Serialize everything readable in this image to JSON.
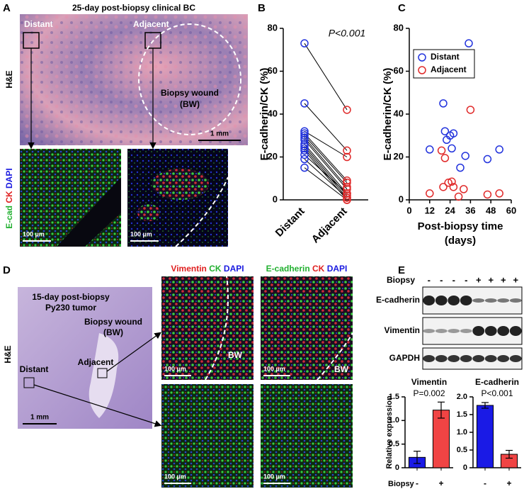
{
  "panel_labels": [
    "A",
    "B",
    "C",
    "D",
    "E"
  ],
  "panel_a": {
    "title": "25-day post-biopsy clinical BC",
    "stain": "H&E",
    "distant": "Distant",
    "adjacent": "Adjacent",
    "wound": [
      "Biopsy wound",
      "(BW)"
    ],
    "scale_he": "1 mm",
    "if_stain": [
      "E-cad",
      "CK",
      "DAPI"
    ],
    "scale_if": [
      "100 µm",
      "100 µm"
    ]
  },
  "panel_d": {
    "title": [
      "15-day post-biopsy",
      "Py230 tumor"
    ],
    "stain": "H&E",
    "wound": [
      "Biopsy wound",
      "(BW)"
    ],
    "adjacent": "Adjacent",
    "distant": "Distant",
    "scale_he": "1 mm",
    "if_stain_1": [
      "Vimentin",
      "CK",
      "DAPI"
    ],
    "if_stain_2": [
      "E-cadherin",
      "CK",
      "DAPI"
    ],
    "bw": [
      "BW",
      "BW"
    ],
    "scale_if": [
      "100 µm",
      "100 µm",
      "100 µm",
      "100 µm"
    ]
  },
  "panel_e_blot": {
    "row_label": "Biopsy",
    "lanes": [
      "-",
      "-",
      "-",
      "-",
      "+",
      "+",
      "+",
      "+"
    ],
    "proteins": [
      "E-cadherin",
      "Vimentin",
      "GAPDH"
    ]
  },
  "chart_data": [
    {
      "type": "paired",
      "ylabel": "E-cadherin/CK (%)",
      "annotation": "P<0.001",
      "ylim": [
        0,
        80
      ],
      "yticks": [
        0,
        20,
        40,
        60,
        80
      ],
      "series": [
        {
          "name": "Distant",
          "color": "#2233dd",
          "values": [
            73,
            45,
            32,
            31,
            30,
            29,
            28,
            26,
            25,
            24,
            23,
            21,
            19,
            15
          ]
        },
        {
          "name": "Adjacent",
          "color": "#e02a2a",
          "values": [
            42,
            23,
            20,
            9,
            8,
            6,
            5,
            3,
            2,
            1,
            0,
            3,
            1,
            0
          ]
        }
      ]
    },
    {
      "type": "scatter",
      "ylabel": "E-cadherin/CK (%)",
      "xlabel": [
        "Post-biopsy time",
        "(days)"
      ],
      "xlim": [
        0,
        60
      ],
      "xticks": [
        0,
        12,
        24,
        36,
        48,
        60
      ],
      "ylim": [
        0,
        80
      ],
      "yticks": [
        0,
        20,
        40,
        60,
        80
      ],
      "legend": "upper left",
      "series": [
        {
          "name": "Distant",
          "color": "#2233dd",
          "x": [
            12,
            20,
            21,
            22,
            24,
            26,
            25,
            30,
            33,
            35,
            46,
            53
          ],
          "values": [
            23.5,
            45,
            32,
            28,
            30,
            31,
            24,
            15,
            20.5,
            73,
            19,
            23.5
          ]
        },
        {
          "name": "Adjacent",
          "color": "#e02a2a",
          "x": [
            12,
            19,
            20,
            21,
            23,
            25,
            26,
            29,
            32,
            36,
            46,
            53
          ],
          "values": [
            3,
            23,
            6,
            19.5,
            8,
            8.5,
            6,
            1.5,
            5,
            42,
            2.5,
            3
          ]
        }
      ]
    },
    {
      "type": "bar",
      "title": "Vimentin",
      "annotation": "P=0.002",
      "ylabel": "Relative expression",
      "xlabel": "Biopsy",
      "categories": [
        "-",
        "+"
      ],
      "values": [
        0.22,
        1.22
      ],
      "errors": [
        0.13,
        0.17
      ],
      "colors": [
        "#1a1ae6",
        "#f04444"
      ],
      "ylim": [
        0,
        1.5
      ],
      "yticks": [
        0,
        0.5,
        {
          "value": 1,
          "label": "1.0"
        },
        1.5
      ]
    },
    {
      "type": "bar",
      "title": "E-cadherin",
      "annotation": "P<0.001",
      "categories": [
        "-",
        "+"
      ],
      "values": [
        1.76,
        0.38
      ],
      "errors": [
        0.08,
        0.11
      ],
      "colors": [
        "#1a1ae6",
        "#f04444"
      ],
      "ylim": [
        0,
        2
      ],
      "yticks": [
        0,
        0.5,
        {
          "value": 1,
          "label": "1.0"
        },
        1.5,
        {
          "value": 2,
          "label": "2.0"
        }
      ]
    }
  ]
}
